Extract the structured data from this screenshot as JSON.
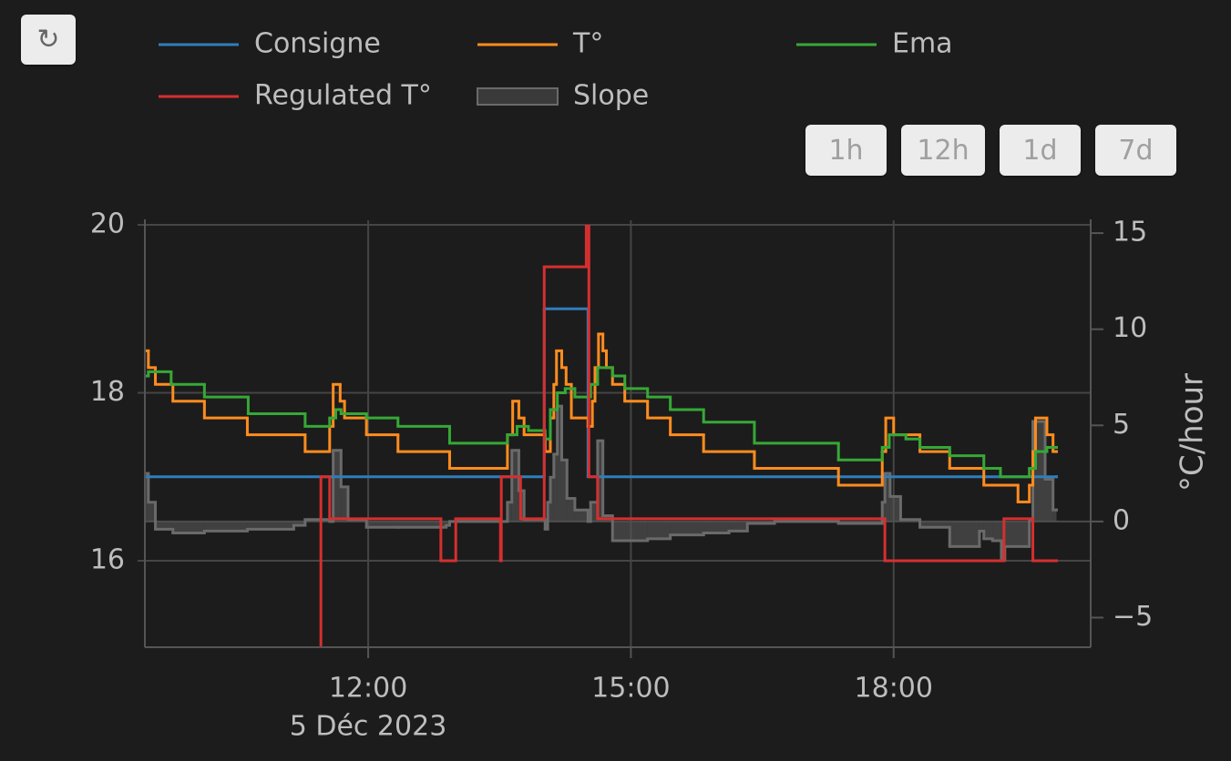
{
  "refresh": "↻",
  "range_buttons": [
    "1h",
    "12h",
    "1d",
    "7d"
  ],
  "chart_data": {
    "type": "step",
    "xaxis_date": "5 Déc 2023",
    "y2_title": "°C/hour",
    "xlim": [
      9.45,
      20.25
    ],
    "xticks": [
      {
        "value": 12,
        "label": "12:00"
      },
      {
        "value": 15,
        "label": "15:00"
      },
      {
        "value": 18,
        "label": "18:00"
      }
    ],
    "ylim": [
      14.97,
      20.0
    ],
    "yticks": [
      16,
      18,
      20
    ],
    "y2lim": [
      -6.54,
      15.43
    ],
    "y2ticks": [
      {
        "value": -5,
        "label": "−5"
      },
      0,
      5,
      10,
      15
    ],
    "grid": true,
    "y2_zeroline": true,
    "legend": "top",
    "series": [
      {
        "name": "Consigne",
        "color": "#2f7ebc",
        "x": [
          9.45,
          14.01,
          14.51,
          19.86
        ],
        "values": [
          17,
          19,
          17,
          17
        ]
      },
      {
        "name": "T°",
        "color": "#ff8c1e",
        "x": [
          9.45,
          9.49,
          9.57,
          9.77,
          10.13,
          10.62,
          11.28,
          11.56,
          11.6,
          11.68,
          11.73,
          11.98,
          12.34,
          12.93,
          13.59,
          13.65,
          13.72,
          13.78,
          14.02,
          14.08,
          14.12,
          14.15,
          14.21,
          14.26,
          14.32,
          14.51,
          14.56,
          14.59,
          14.63,
          14.68,
          14.72,
          14.79,
          14.93,
          15.19,
          15.45,
          15.83,
          16.41,
          17.37,
          17.87,
          17.91,
          18.0,
          18.3,
          18.64,
          19.03,
          19.42,
          19.55,
          19.59,
          19.62,
          19.75,
          19.82,
          19.86
        ],
        "values": [
          18.5,
          18.3,
          18.1,
          17.9,
          17.7,
          17.5,
          17.3,
          17.6,
          18.1,
          17.9,
          17.7,
          17.5,
          17.3,
          17.1,
          17.5,
          17.9,
          17.7,
          17.5,
          17.3,
          17.7,
          18.1,
          18.5,
          18.3,
          18.1,
          17.7,
          17.6,
          17.9,
          18.3,
          18.7,
          18.5,
          18.3,
          18.1,
          17.9,
          17.7,
          17.5,
          17.3,
          17.1,
          16.9,
          17.3,
          17.7,
          17.5,
          17.3,
          17.1,
          16.9,
          16.7,
          16.9,
          17.3,
          17.7,
          17.5,
          17.3,
          17.3
        ]
      },
      {
        "name": "Ema",
        "color": "#36a836",
        "x": [
          9.45,
          9.49,
          9.75,
          10.13,
          10.63,
          11.28,
          11.56,
          11.63,
          11.69,
          11.98,
          12.34,
          12.93,
          13.59,
          13.7,
          13.83,
          14.02,
          14.08,
          14.16,
          14.25,
          14.36,
          14.54,
          14.62,
          14.79,
          14.93,
          15.19,
          15.45,
          15.83,
          16.41,
          17.37,
          17.87,
          17.95,
          18.14,
          18.3,
          18.64,
          19.03,
          19.22,
          19.55,
          19.62,
          19.75,
          19.86
        ],
        "values": [
          18.2,
          18.25,
          18.1,
          17.95,
          17.75,
          17.6,
          17.7,
          17.8,
          17.75,
          17.7,
          17.6,
          17.4,
          17.5,
          17.6,
          17.55,
          17.45,
          17.8,
          18.0,
          18.05,
          17.95,
          18.1,
          18.3,
          18.2,
          18.05,
          17.95,
          17.8,
          17.65,
          17.4,
          17.2,
          17.35,
          17.5,
          17.45,
          17.35,
          17.25,
          17.1,
          17.0,
          17.1,
          17.3,
          17.35,
          17.35
        ]
      },
      {
        "name": "Regulated T°",
        "color": "#d62f2f",
        "x": [
          11.45,
          11.46,
          11.56,
          12.83,
          13.0,
          13.51,
          13.52,
          13.74,
          14.01,
          14.49,
          14.52,
          14.62,
          17.9,
          19.26,
          19.59,
          19.86
        ],
        "values": [
          14.5,
          17,
          16.5,
          16,
          16.5,
          16,
          17,
          16.5,
          19.5,
          20,
          17,
          16.5,
          16,
          16.5,
          16,
          16
        ]
      },
      {
        "name": "Slope",
        "color": "#6a6a6a",
        "axis": "y2",
        "fill": "zero",
        "x": [
          9.45,
          9.49,
          9.57,
          9.77,
          10.13,
          10.62,
          11.15,
          11.28,
          11.56,
          11.6,
          11.69,
          11.77,
          11.98,
          12.34,
          12.89,
          12.93,
          13.59,
          13.64,
          13.72,
          13.78,
          14.02,
          14.05,
          14.08,
          14.12,
          14.16,
          14.21,
          14.27,
          14.36,
          14.51,
          14.54,
          14.62,
          14.68,
          14.79,
          15.19,
          15.45,
          15.83,
          16.12,
          16.33,
          16.64,
          17.37,
          17.87,
          17.9,
          17.96,
          18.08,
          18.3,
          18.64,
          18.98,
          19.03,
          19.13,
          19.23,
          19.27,
          19.55,
          19.59,
          19.73,
          19.82,
          19.86
        ],
        "values": [
          2.5,
          1.0,
          -0.4,
          -0.6,
          -0.5,
          -0.4,
          -0.2,
          0.1,
          0.0,
          3.7,
          1.8,
          0.1,
          -0.3,
          -0.3,
          -0.2,
          0.0,
          1.0,
          3.7,
          1.6,
          0.1,
          -0.4,
          1.0,
          2.3,
          3.5,
          6.0,
          3.2,
          1.2,
          0.6,
          0.0,
          1.0,
          4.2,
          0.3,
          -1.0,
          -0.9,
          -0.7,
          -0.6,
          -0.5,
          -0.1,
          0.0,
          -0.1,
          1.0,
          2.5,
          1.3,
          0.1,
          -0.3,
          -1.3,
          -0.5,
          -0.9,
          -1.0,
          -2.0,
          -1.3,
          0.1,
          5.2,
          2.2,
          0.6,
          0.6
        ]
      }
    ]
  }
}
